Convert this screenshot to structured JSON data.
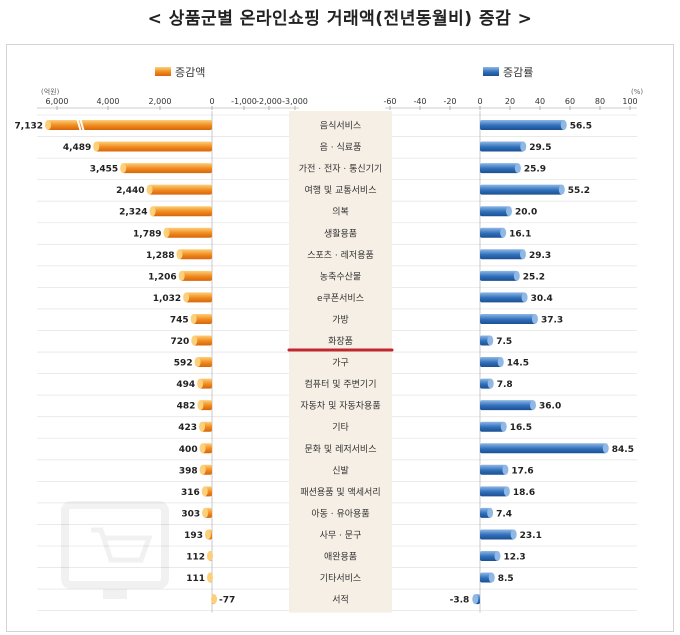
{
  "title": "< 상품군별 온라인쇼핑 거래액(전년동월비) 증감 >",
  "legend": {
    "left": "증감액",
    "right": "증감률"
  },
  "colors": {
    "amount": "#f08a1e",
    "amount_dark": "#d8650c",
    "amount_light": "#fcd07a",
    "rate": "#2f6fba",
    "rate_dark": "#1d4f91",
    "rate_light": "#8fb8e6",
    "divider": "#c0282e",
    "center_bg": "#f6efe6"
  },
  "chart_data": {
    "type": "bar",
    "orientation": "horizontal",
    "categories": [
      "음식서비스",
      "음 · 식료품",
      "가전 · 전자 · 통신기기",
      "여행 및 교통서비스",
      "의복",
      "생활용품",
      "스포츠 · 레저용품",
      "농축수산물",
      "e쿠폰서비스",
      "가방",
      "화장품",
      "가구",
      "컴퓨터 및 주변기기",
      "자동차 및 자동차용품",
      "기타",
      "문화 및 레저서비스",
      "신발",
      "패션용품 및 액세서리",
      "아동 · 유아용품",
      "사무 · 문구",
      "애완용품",
      "기타서비스",
      "서적"
    ],
    "series": [
      {
        "name": "증감액",
        "values": [
          7132,
          4489,
          3455,
          2440,
          2324,
          1789,
          1288,
          1206,
          1032,
          745,
          720,
          592,
          494,
          482,
          423,
          400,
          398,
          316,
          303,
          193,
          112,
          111,
          -77
        ],
        "labels": [
          "7,132",
          "4,489",
          "3,455",
          "2,440",
          "2,324",
          "1,789",
          "1,288",
          "1,206",
          "1,032",
          "745",
          "720",
          "592",
          "494",
          "482",
          "423",
          "400",
          "398",
          "316",
          "303",
          "193",
          "112",
          "111",
          "-77"
        ]
      },
      {
        "name": "증감률",
        "values": [
          56.5,
          29.5,
          25.9,
          55.2,
          20.0,
          16.1,
          29.3,
          25.2,
          30.4,
          37.3,
          7.5,
          14.5,
          7.8,
          36.0,
          16.5,
          84.5,
          17.6,
          18.6,
          7.4,
          23.1,
          12.3,
          8.5,
          -3.8
        ],
        "labels": [
          "56.5",
          "29.5",
          "25.9",
          "55.2",
          "20.0",
          "16.1",
          "29.3",
          "25.2",
          "30.4",
          "37.3",
          "7.5",
          "14.5",
          "7.8",
          "36.0",
          "16.5",
          "84.5",
          "17.6",
          "18.6",
          "7.4",
          "23.1",
          "12.3",
          "8.5",
          "-3.8"
        ]
      }
    ],
    "left_axis": {
      "unit": "(억원)",
      "ticks": [
        "6,000",
        "4,000",
        "2,000",
        "0",
        "-1,000",
        "-2,000",
        "-3,000"
      ],
      "tick_values": [
        6000,
        4000,
        2000,
        0,
        -1000,
        -2000,
        -3000
      ]
    },
    "right_axis": {
      "unit": "(%)",
      "ticks": [
        "-60",
        "-40",
        "-20",
        "0",
        "20",
        "40",
        "60",
        "80",
        "100"
      ],
      "tick_values": [
        -60,
        -40,
        -20,
        0,
        20,
        40,
        60,
        80,
        100
      ]
    },
    "amount_axis_break": true,
    "divider_after": "화장품",
    "grid": true,
    "legend_position": "top"
  }
}
